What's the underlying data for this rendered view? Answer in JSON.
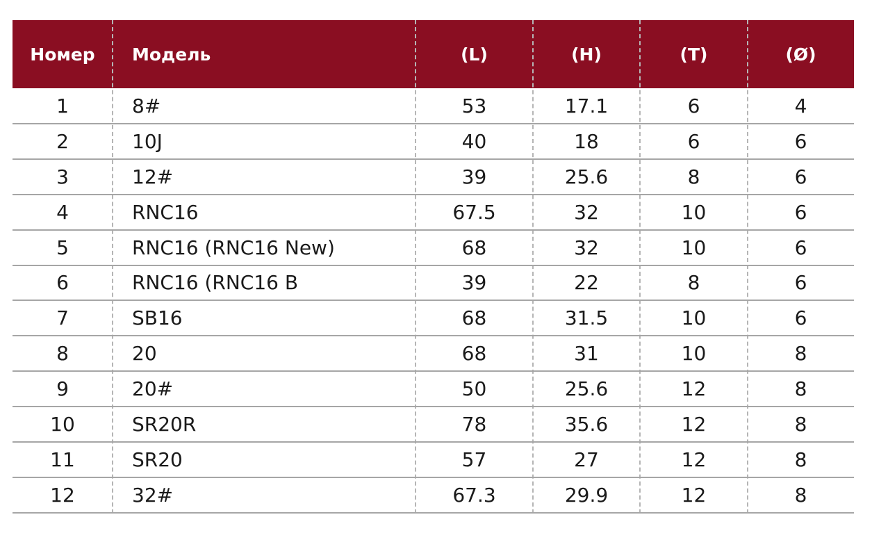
{
  "table": {
    "header": [
      "Номер",
      "Модель",
      "(L)",
      "(H)",
      "(T)",
      "(Ø)"
    ],
    "rows": [
      [
        "1",
        "8#",
        "53",
        "17.1",
        "6",
        "4"
      ],
      [
        "2",
        "10J",
        "40",
        "18",
        "6",
        "6"
      ],
      [
        "3",
        "12#",
        "39",
        "25.6",
        "8",
        "6"
      ],
      [
        "4",
        "RNC16",
        "67.5",
        "32",
        "10",
        "6"
      ],
      [
        "5",
        "RNC16 (RNC16 New)",
        "68",
        "32",
        "10",
        "6"
      ],
      [
        "6",
        "RNC16 (RNC16 B",
        "39",
        "22",
        "8",
        "6"
      ],
      [
        "7",
        "SB16",
        "68",
        "31.5",
        "10",
        "6"
      ],
      [
        "8",
        "20",
        "68",
        "31",
        "10",
        "8"
      ],
      [
        "9",
        "20#",
        "50",
        "25.6",
        "12",
        "8"
      ],
      [
        "10",
        "SR20R",
        "78",
        "35.6",
        "12",
        "8"
      ],
      [
        "11",
        "SR20",
        "57",
        "27",
        "12",
        "8"
      ],
      [
        "12",
        "32#",
        "67.3",
        "29.9",
        "12",
        "8"
      ]
    ]
  }
}
